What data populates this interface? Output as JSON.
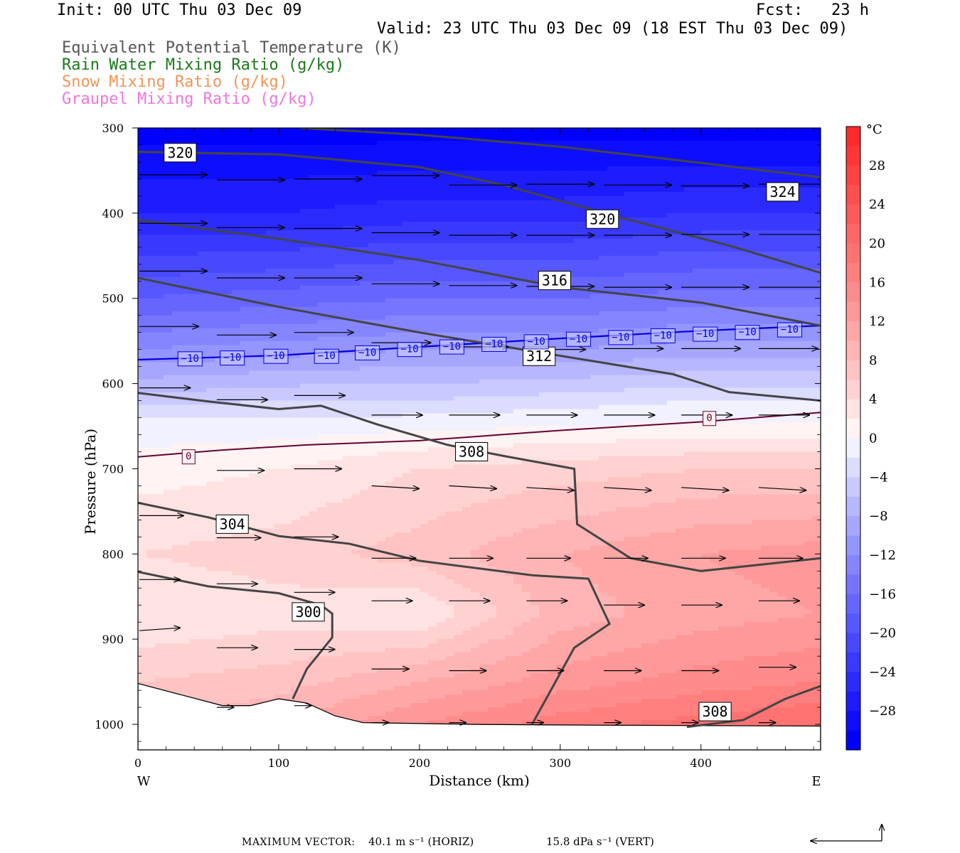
{
  "header": {
    "init": "Init: 00 UTC Thu 03 Dec 09",
    "fcst": "Fcst:   23 h",
    "valid": "Valid: 23 UTC Thu 03 Dec 09 (18 EST Thu 03 Dec 09)"
  },
  "legend": [
    {
      "label": "Equivalent Potential Temperature (K)",
      "color": "#555555"
    },
    {
      "label": "Rain Water Mixing Ratio (g/kg)",
      "color": "#1a7a1a"
    },
    {
      "label": "Snow Mixing Ratio (g/kg)",
      "color": "#f0955a"
    },
    {
      "label": "Graupel Mixing Ratio (g/kg)",
      "color": "#ee77dd"
    }
  ],
  "chart_data": {
    "type": "heatmap",
    "xlabel": "Distance (km)",
    "ylabel": "Pressure (hPa)",
    "xlim": [
      0,
      485
    ],
    "ylim": [
      1030,
      300
    ],
    "x_ticks": [
      "0",
      "100",
      "200",
      "300",
      "400"
    ],
    "y_ticks": [
      "300",
      "400",
      "500",
      "600",
      "700",
      "800",
      "900",
      "1000"
    ],
    "x_end_labels": {
      "left": "W",
      "right": "E"
    },
    "colorbar": {
      "unit": "°C",
      "tick_labels": [
        "28",
        "24",
        "20",
        "16",
        "12",
        "8",
        "4",
        "0",
        "−4",
        "−8",
        "−12",
        "−16",
        "−20",
        "−24",
        "−28"
      ],
      "levels": [
        -32,
        -30,
        -28,
        -26,
        -24,
        -22,
        -20,
        -18,
        -16,
        -14,
        -12,
        -10,
        -8,
        -6,
        -4,
        -2,
        0,
        2,
        4,
        6,
        8,
        10,
        12,
        14,
        16,
        18,
        20,
        22,
        24,
        26,
        28,
        30,
        32
      ],
      "cold_color": "#0000ff",
      "zero_color": "#ffffff",
      "warm_color": "#ff2a2a"
    },
    "temperature_field": {
      "rows": [
        {
          "p": 300,
          "t": [
            -31,
            -31,
            -31,
            -31,
            -31,
            -31
          ]
        },
        {
          "p": 400,
          "t": [
            -26,
            -26,
            -25,
            -25,
            -24,
            -24
          ]
        },
        {
          "p": 500,
          "t": [
            -18,
            -17,
            -16,
            -16,
            -15,
            -15
          ]
        },
        {
          "p": 560,
          "t": [
            -12,
            -11,
            -10,
            -10,
            -9,
            -9
          ]
        },
        {
          "p": 620,
          "t": [
            -5,
            -4,
            -4,
            -3,
            -2,
            -2
          ]
        },
        {
          "p": 650,
          "t": [
            -1,
            -1,
            -0.5,
            0,
            0.5,
            0.5
          ]
        },
        {
          "p": 700,
          "t": [
            1,
            2,
            4,
            5,
            6,
            6
          ]
        },
        {
          "p": 800,
          "t": [
            4,
            5,
            7,
            10,
            12,
            13
          ]
        },
        {
          "p": 870,
          "t": [
            2,
            3,
            2,
            9,
            11,
            12
          ]
        },
        {
          "p": 950,
          "t": [
            6,
            7,
            10,
            13,
            15,
            16
          ]
        },
        {
          "p": 1000,
          "t": [
            8,
            10,
            14,
            17,
            19,
            20
          ]
        }
      ],
      "x": [
        0,
        100,
        200,
        300,
        400,
        485
      ]
    },
    "theta_e_contours": [
      {
        "label": "324",
        "points": [
          [
            115,
            300
          ],
          [
            200,
            308
          ],
          [
            300,
            322
          ],
          [
            400,
            341
          ],
          [
            485,
            358
          ]
        ],
        "label_at": [
          458,
          375
        ]
      },
      {
        "label": "320",
        "points": [
          [
            0,
            328
          ],
          [
            100,
            331
          ],
          [
            200,
            346
          ],
          [
            260,
            367
          ],
          [
            340,
            404
          ],
          [
            420,
            438
          ],
          [
            485,
            470
          ]
        ],
        "label_at": [
          330,
          407
        ]
      },
      {
        "label": "320",
        "points": [
          [
            0,
            328
          ],
          [
            100,
            331
          ]
        ],
        "label_at": [
          30,
          329
        ]
      },
      {
        "label": "316",
        "points": [
          [
            0,
            408
          ],
          [
            100,
            430
          ],
          [
            200,
            455
          ],
          [
            300,
            487
          ],
          [
            400,
            505
          ],
          [
            485,
            532
          ]
        ],
        "label_at": [
          296,
          479
        ]
      },
      {
        "label": "312",
        "points": [
          [
            0,
            476
          ],
          [
            100,
            510
          ],
          [
            200,
            540
          ],
          [
            280,
            562
          ],
          [
            380,
            589
          ],
          [
            420,
            610
          ],
          [
            485,
            620
          ]
        ],
        "label_at": [
          285,
          568
        ]
      },
      {
        "label": "308",
        "points": [
          [
            0,
            611
          ],
          [
            50,
            621
          ],
          [
            100,
            630
          ],
          [
            130,
            626
          ],
          [
            170,
            648
          ],
          [
            220,
            672
          ],
          [
            260,
            685
          ],
          [
            310,
            700
          ],
          [
            312,
            765
          ],
          [
            350,
            805
          ],
          [
            400,
            820
          ],
          [
            485,
            805
          ]
        ],
        "label_at": [
          237,
          680
        ]
      },
      {
        "label": "304",
        "points": [
          [
            0,
            740
          ],
          [
            50,
            757
          ],
          [
            100,
            779
          ],
          [
            150,
            788
          ],
          [
            200,
            808
          ],
          [
            280,
            825
          ],
          [
            320,
            829
          ],
          [
            335,
            882
          ],
          [
            310,
            910
          ],
          [
            280,
            1000
          ]
        ],
        "label_at": [
          67,
          765
        ]
      },
      {
        "label": "300",
        "points": [
          [
            0,
            821
          ],
          [
            50,
            838
          ],
          [
            100,
            846
          ],
          [
            130,
            860
          ],
          [
            138,
            870
          ],
          [
            138,
            898
          ],
          [
            120,
            935
          ],
          [
            110,
            970
          ]
        ],
        "label_at": [
          121,
          868
        ]
      },
      {
        "label": "308",
        "points": [
          [
            390,
            1003
          ],
          [
            430,
            995
          ],
          [
            460,
            970
          ],
          [
            485,
            955
          ]
        ],
        "label_at": [
          410,
          985
        ]
      }
    ],
    "zero_isotherm": {
      "label": "0",
      "points": [
        [
          0,
          686
        ],
        [
          60,
          678
        ],
        [
          120,
          672
        ],
        [
          200,
          667
        ],
        [
          300,
          655
        ],
        [
          400,
          645
        ],
        [
          485,
          634
        ]
      ],
      "labels_at": [
        [
          36,
          686
        ],
        [
          406,
          641
        ]
      ],
      "color": "#660033"
    },
    "minus10_isotherm": {
      "label": "−10",
      "points": [
        [
          0,
          572
        ],
        [
          100,
          567
        ],
        [
          200,
          557
        ],
        [
          300,
          547
        ],
        [
          400,
          538
        ],
        [
          485,
          532
        ]
      ],
      "labels_at": [
        [
          37,
          571
        ],
        [
          67,
          570
        ],
        [
          98,
          568
        ],
        [
          134,
          568
        ],
        [
          163,
          564
        ],
        [
          193,
          560
        ],
        [
          223,
          557
        ],
        [
          253,
          554
        ],
        [
          283,
          551
        ],
        [
          313,
          548
        ],
        [
          343,
          546
        ],
        [
          373,
          544
        ],
        [
          403,
          542
        ],
        [
          433,
          540
        ],
        [
          463,
          537
        ]
      ],
      "color": "#0000dd"
    },
    "wind_vectors": [
      {
        "x": 0,
        "p": 355,
        "u": 40,
        "w": 0
      },
      {
        "x": 55,
        "p": 361,
        "u": 40,
        "w": 0
      },
      {
        "x": 110,
        "p": 360,
        "u": 40,
        "w": 0
      },
      {
        "x": 165,
        "p": 356,
        "u": 40,
        "w": 0
      },
      {
        "x": 220,
        "p": 367,
        "u": 40,
        "w": 0
      },
      {
        "x": 275,
        "p": 366,
        "u": 40,
        "w": 0
      },
      {
        "x": 330,
        "p": 367,
        "u": 40,
        "w": 0
      },
      {
        "x": 385,
        "p": 368,
        "u": 40,
        "w": 0
      },
      {
        "x": 440,
        "p": 366,
        "u": 40,
        "w": 0
      },
      {
        "x": 0,
        "p": 412,
        "u": 40,
        "w": 0
      },
      {
        "x": 55,
        "p": 417,
        "u": 40,
        "w": 0
      },
      {
        "x": 110,
        "p": 418,
        "u": 40,
        "w": 0
      },
      {
        "x": 165,
        "p": 423,
        "u": 40,
        "w": 0
      },
      {
        "x": 220,
        "p": 426,
        "u": 40,
        "w": 0
      },
      {
        "x": 275,
        "p": 426,
        "u": 40,
        "w": 0
      },
      {
        "x": 330,
        "p": 426,
        "u": 40,
        "w": 0
      },
      {
        "x": 385,
        "p": 425,
        "u": 40,
        "w": 0
      },
      {
        "x": 440,
        "p": 425,
        "u": 40,
        "w": 0
      },
      {
        "x": 0,
        "p": 468,
        "u": 40,
        "w": 0
      },
      {
        "x": 55,
        "p": 476,
        "u": 40,
        "w": 0
      },
      {
        "x": 110,
        "p": 476,
        "u": 40,
        "w": 0
      },
      {
        "x": 165,
        "p": 483,
        "u": 40,
        "w": 0
      },
      {
        "x": 220,
        "p": 485,
        "u": 40,
        "w": 0
      },
      {
        "x": 275,
        "p": 486,
        "u": 40,
        "w": 0
      },
      {
        "x": 330,
        "p": 487,
        "u": 40,
        "w": 0
      },
      {
        "x": 385,
        "p": 487,
        "u": 40,
        "w": 0
      },
      {
        "x": 440,
        "p": 487,
        "u": 40,
        "w": 0
      },
      {
        "x": 0,
        "p": 533,
        "u": 35,
        "w": 0
      },
      {
        "x": 55,
        "p": 543,
        "u": 35,
        "w": 0
      },
      {
        "x": 110,
        "p": 540,
        "u": 35,
        "w": 0
      },
      {
        "x": 165,
        "p": 552,
        "u": 35,
        "w": 0
      },
      {
        "x": 220,
        "p": 557,
        "u": 35,
        "w": 0
      },
      {
        "x": 275,
        "p": 560,
        "u": 35,
        "w": 0
      },
      {
        "x": 330,
        "p": 559,
        "u": 35,
        "w": 0
      },
      {
        "x": 385,
        "p": 559,
        "u": 35,
        "w": 0
      },
      {
        "x": 440,
        "p": 559,
        "u": 35,
        "w": 0
      },
      {
        "x": 0,
        "p": 605,
        "u": 30,
        "w": 0
      },
      {
        "x": 55,
        "p": 619,
        "u": 30,
        "w": 0
      },
      {
        "x": 110,
        "p": 614,
        "u": 30,
        "w": 0
      },
      {
        "x": 165,
        "p": 637,
        "u": 30,
        "w": 0
      },
      {
        "x": 220,
        "p": 637,
        "u": 30,
        "w": 0
      },
      {
        "x": 275,
        "p": 637,
        "u": 30,
        "w": 0
      },
      {
        "x": 330,
        "p": 637,
        "u": 30,
        "w": 0
      },
      {
        "x": 385,
        "p": 637,
        "u": 30,
        "w": 0
      },
      {
        "x": 440,
        "p": 637,
        "u": 30,
        "w": 0
      },
      {
        "x": 55,
        "p": 702,
        "u": 28,
        "w": 0
      },
      {
        "x": 110,
        "p": 700,
        "u": 28,
        "w": 0
      },
      {
        "x": 165,
        "p": 720,
        "u": 28,
        "w": -2
      },
      {
        "x": 220,
        "p": 720,
        "u": 28,
        "w": -2
      },
      {
        "x": 275,
        "p": 722,
        "u": 28,
        "w": -2
      },
      {
        "x": 330,
        "p": 722,
        "u": 28,
        "w": -2
      },
      {
        "x": 385,
        "p": 722,
        "u": 28,
        "w": -2
      },
      {
        "x": 440,
        "p": 722,
        "u": 28,
        "w": -2
      },
      {
        "x": 0,
        "p": 755,
        "u": 26,
        "w": 0
      },
      {
        "x": 55,
        "p": 781,
        "u": 26,
        "w": 0
      },
      {
        "x": 110,
        "p": 780,
        "u": 26,
        "w": 0
      },
      {
        "x": 165,
        "p": 805,
        "u": 26,
        "w": 0
      },
      {
        "x": 220,
        "p": 805,
        "u": 26,
        "w": 0
      },
      {
        "x": 275,
        "p": 805,
        "u": 26,
        "w": 0
      },
      {
        "x": 330,
        "p": 805,
        "u": 26,
        "w": 0
      },
      {
        "x": 385,
        "p": 805,
        "u": 26,
        "w": 0
      },
      {
        "x": 440,
        "p": 805,
        "u": 26,
        "w": 0
      },
      {
        "x": 0,
        "p": 830,
        "u": 24,
        "w": 0
      },
      {
        "x": 55,
        "p": 835,
        "u": 24,
        "w": 0
      },
      {
        "x": 110,
        "p": 845,
        "u": 24,
        "w": 0
      },
      {
        "x": 165,
        "p": 855,
        "u": 24,
        "w": 0
      },
      {
        "x": 220,
        "p": 855,
        "u": 24,
        "w": 0
      },
      {
        "x": 275,
        "p": 855,
        "u": 24,
        "w": 0
      },
      {
        "x": 330,
        "p": 860,
        "u": 24,
        "w": 0
      },
      {
        "x": 385,
        "p": 860,
        "u": 24,
        "w": 0
      },
      {
        "x": 440,
        "p": 855,
        "u": 24,
        "w": 0
      },
      {
        "x": 0,
        "p": 890,
        "u": 24,
        "w": 2
      },
      {
        "x": 55,
        "p": 910,
        "u": 24,
        "w": 0
      },
      {
        "x": 110,
        "p": 912,
        "u": 24,
        "w": 0
      },
      {
        "x": 165,
        "p": 935,
        "u": 22,
        "w": 0
      },
      {
        "x": 220,
        "p": 937,
        "u": 22,
        "w": 0
      },
      {
        "x": 275,
        "p": 937,
        "u": 22,
        "w": 0
      },
      {
        "x": 330,
        "p": 937,
        "u": 22,
        "w": 0
      },
      {
        "x": 385,
        "p": 937,
        "u": 22,
        "w": 0
      },
      {
        "x": 440,
        "p": 933,
        "u": 22,
        "w": 0
      },
      {
        "x": 55,
        "p": 980,
        "u": 10,
        "w": 0
      },
      {
        "x": 110,
        "p": 978,
        "u": 10,
        "w": 0
      },
      {
        "x": 165,
        "p": 998,
        "u": 10,
        "w": 0
      },
      {
        "x": 220,
        "p": 998,
        "u": 10,
        "w": 0
      },
      {
        "x": 275,
        "p": 998,
        "u": 10,
        "w": 0
      },
      {
        "x": 330,
        "p": 998,
        "u": 10,
        "w": 0
      },
      {
        "x": 385,
        "p": 998,
        "u": 10,
        "w": 0
      },
      {
        "x": 440,
        "p": 998,
        "u": 10,
        "w": 0
      }
    ],
    "terrain": [
      [
        0,
        952
      ],
      [
        30,
        965
      ],
      [
        60,
        978
      ],
      [
        80,
        978
      ],
      [
        100,
        970
      ],
      [
        120,
        975
      ],
      [
        140,
        990
      ],
      [
        160,
        998
      ],
      [
        240,
        1000
      ],
      [
        330,
        1001
      ],
      [
        485,
        1002
      ]
    ]
  },
  "footer": {
    "max_vector_label": "MAXIMUM VECTOR:",
    "horiz_value": "40.1 m s⁻¹ (HORIZ)",
    "vert_value": "15.8 dPa s⁻¹ (VERT)"
  }
}
